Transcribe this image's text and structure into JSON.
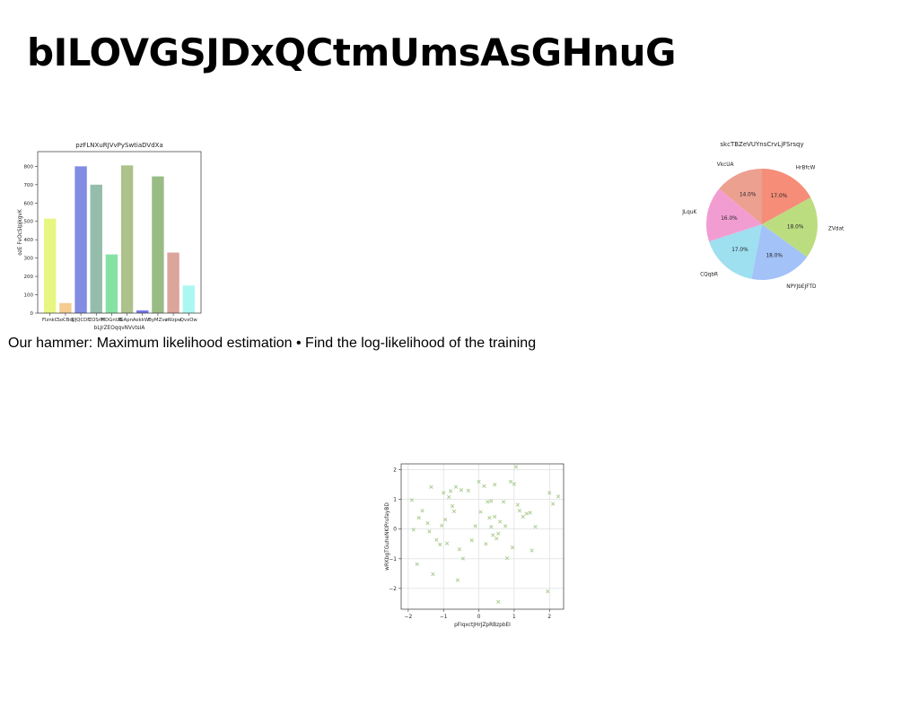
{
  "page": {
    "title": "bILOVGSJDxQCtmUmsAsGHnuG",
    "subtitle": "Our hammer: Maximum likelihood estimation • Find the log-likelihood of the training"
  },
  "chart_data": [
    {
      "type": "bar",
      "title": "pzFLNXuRJVvPySwtiaDVdXa",
      "xlabel": "bLJrZEOqqvNVvtsIA",
      "ylabel": "ozE FvOcSIpjkgvK",
      "categories": [
        "FlznkC",
        "SoCBdJ",
        "UJQCDF",
        "ZOSrH",
        "MDGnUB",
        "fGApnA",
        "ekkW",
        "ByMZvo",
        "zWzpw",
        "QvxOw"
      ],
      "values": [
        515,
        55,
        800,
        700,
        320,
        805,
        15,
        745,
        330,
        150
      ],
      "colors": [
        "#e6f57a",
        "#f5c98a",
        "#7a86e0",
        "#8fb9a8",
        "#7ee0a0",
        "#a9bf85",
        "#7070e6",
        "#94b87e",
        "#d9a096",
        "#a8f7f0"
      ],
      "ylim": [
        0,
        880
      ],
      "yticks": [
        0,
        100,
        200,
        300,
        400,
        500,
        600,
        700,
        800
      ]
    },
    {
      "type": "pie",
      "title": "skcTBZeVUYnsCrvLjFSrsqy",
      "labels": [
        "HrBfcW",
        "ZVdat",
        "NPYJbEJFTD",
        "CQqbR",
        "JLquK",
        "VkcUA"
      ],
      "values": [
        17.0,
        18.0,
        18.0,
        17.0,
        16.0,
        14.0
      ],
      "pct_labels": [
        "17.0%",
        "18.0%",
        "18.0%",
        "17.0%",
        "16.0%",
        "14.0%"
      ],
      "colors": [
        "#f58d78",
        "#bbdd80",
        "#a3c2f7",
        "#9edff0",
        "#f29dd2",
        "#eca090"
      ]
    },
    {
      "type": "scatter",
      "xlabel": "pFIqxctJHrJZpRBzpbEI",
      "ylabel": "wRKbgTGuheNKIPrufayBD",
      "xlim": [
        -2.2,
        2.4
      ],
      "ylim": [
        -2.7,
        2.2
      ],
      "xticks": [
        -2,
        -1,
        0,
        1,
        2
      ],
      "yticks": [
        -2,
        -1,
        0,
        1,
        2
      ],
      "grid": true,
      "marker_color": "#a8c98a",
      "points": [
        [
          -1.9,
          0.98
        ],
        [
          -1.85,
          -0.02
        ],
        [
          -1.75,
          -1.18
        ],
        [
          -1.6,
          0.62
        ],
        [
          -1.45,
          0.2
        ],
        [
          -1.4,
          -0.08
        ],
        [
          -1.35,
          1.42
        ],
        [
          -1.3,
          -1.52
        ],
        [
          -1.2,
          -0.36
        ],
        [
          -1.1,
          -0.52
        ],
        [
          -1.0,
          1.22
        ],
        [
          -0.9,
          -0.48
        ],
        [
          -0.85,
          1.08
        ],
        [
          -0.8,
          1.28
        ],
        [
          -0.75,
          0.78
        ],
        [
          -0.7,
          0.6
        ],
        [
          -0.65,
          1.42
        ],
        [
          -0.6,
          -1.72
        ],
        [
          -0.55,
          -0.68
        ],
        [
          -0.5,
          1.32
        ],
        [
          -0.45,
          -0.99
        ],
        [
          -0.3,
          1.3
        ],
        [
          -0.2,
          -0.38
        ],
        [
          -0.1,
          0.1
        ],
        [
          0.0,
          1.6
        ],
        [
          0.05,
          0.58
        ],
        [
          0.15,
          1.45
        ],
        [
          0.2,
          -0.5
        ],
        [
          0.3,
          0.38
        ],
        [
          0.35,
          0.08
        ],
        [
          0.4,
          -0.2
        ],
        [
          0.45,
          1.5
        ],
        [
          0.5,
          -0.32
        ],
        [
          0.55,
          -0.15
        ],
        [
          0.6,
          0.25
        ],
        [
          0.7,
          0.92
        ],
        [
          0.8,
          -0.98
        ],
        [
          0.9,
          1.6
        ],
        [
          0.95,
          -0.62
        ],
        [
          1.0,
          1.52
        ],
        [
          1.05,
          2.1
        ],
        [
          1.1,
          0.82
        ],
        [
          1.15,
          0.62
        ],
        [
          1.25,
          0.42
        ],
        [
          1.35,
          0.52
        ],
        [
          1.5,
          -0.72
        ],
        [
          1.6,
          0.08
        ],
        [
          1.95,
          -2.1
        ],
        [
          2.0,
          1.22
        ],
        [
          2.1,
          0.85
        ],
        [
          2.25,
          1.1
        ],
        [
          1.45,
          0.55
        ],
        [
          -1.05,
          0.12
        ],
        [
          -0.95,
          0.32
        ],
        [
          0.25,
          0.92
        ],
        [
          -1.7,
          0.38
        ],
        [
          0.45,
          0.42
        ],
        [
          0.55,
          -2.45
        ],
        [
          0.35,
          0.95
        ],
        [
          0.75,
          0.1
        ]
      ]
    }
  ]
}
